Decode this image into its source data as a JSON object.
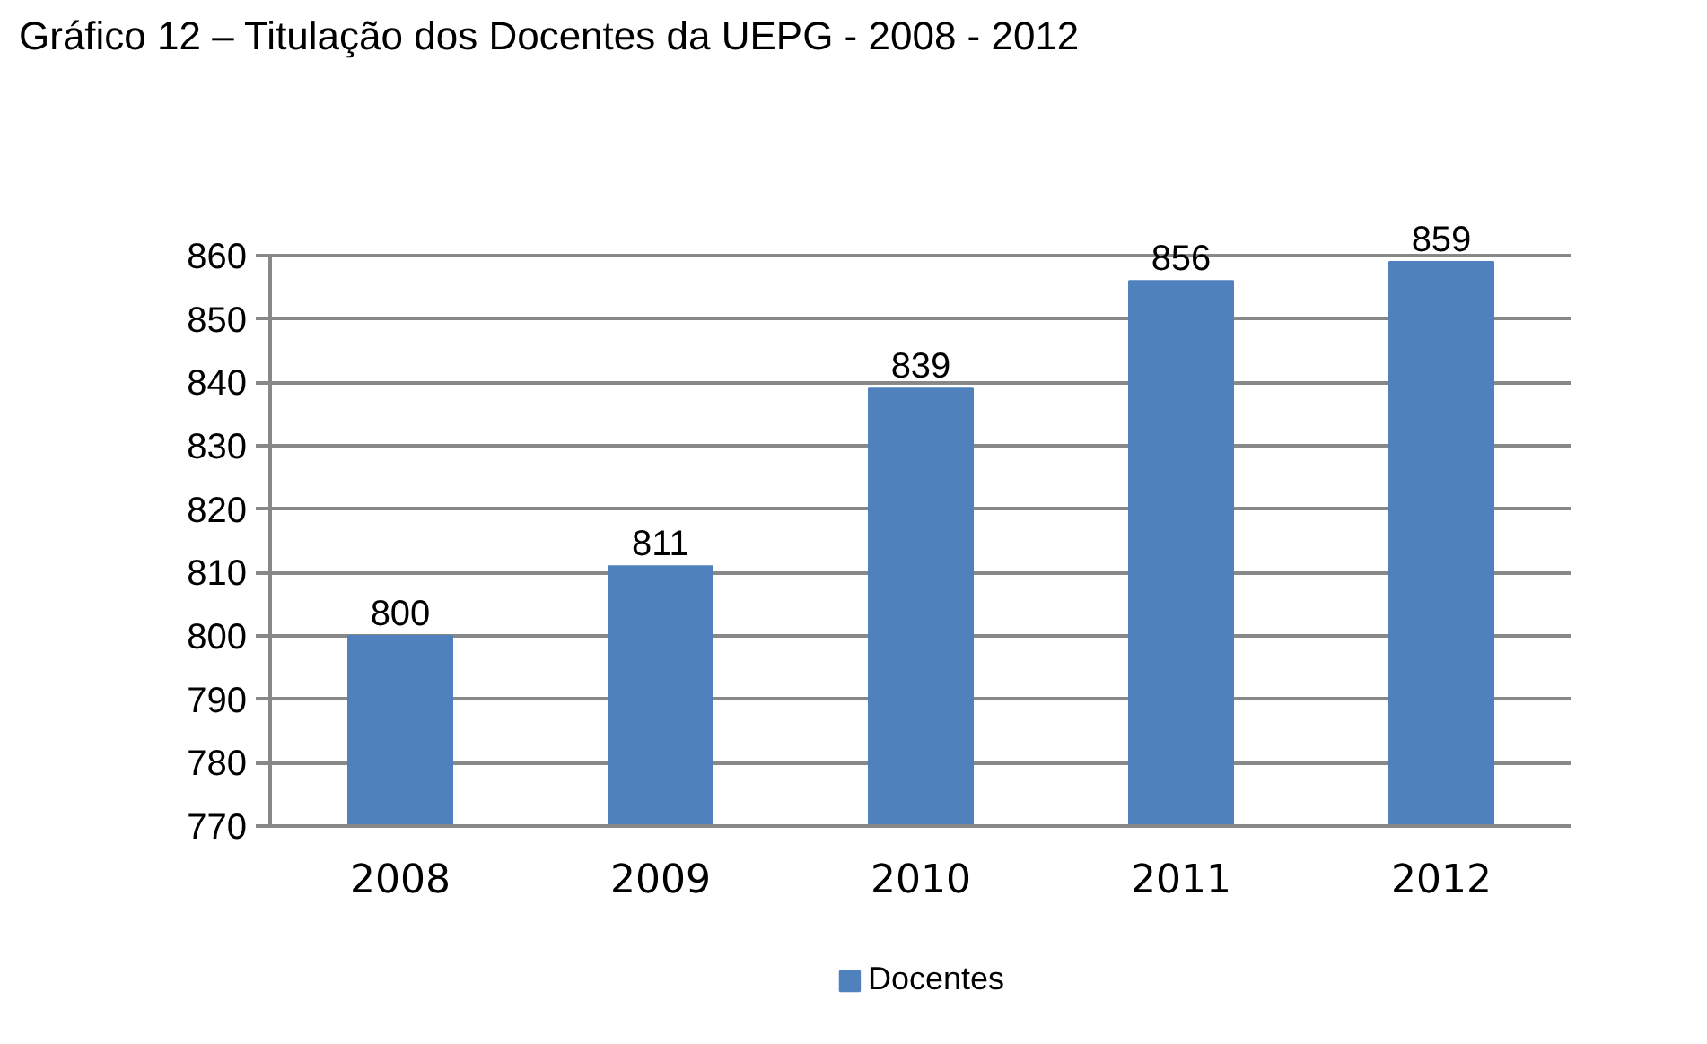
{
  "chart_data": {
    "type": "bar",
    "title": "Gráfico 12 – Titulação dos Docentes da UEPG - 2008 - 2012",
    "categories": [
      "2008",
      "2009",
      "2010",
      "2011",
      "2012"
    ],
    "series": [
      {
        "name": "Docentes",
        "color": "#4f81bd",
        "values": [
          800,
          811,
          839,
          856,
          859
        ]
      }
    ],
    "ylim": [
      770,
      860
    ],
    "yticks": [
      770,
      780,
      790,
      800,
      810,
      820,
      830,
      840,
      850,
      860
    ],
    "grid": "y",
    "legend": "bottom",
    "data_labels": true
  }
}
